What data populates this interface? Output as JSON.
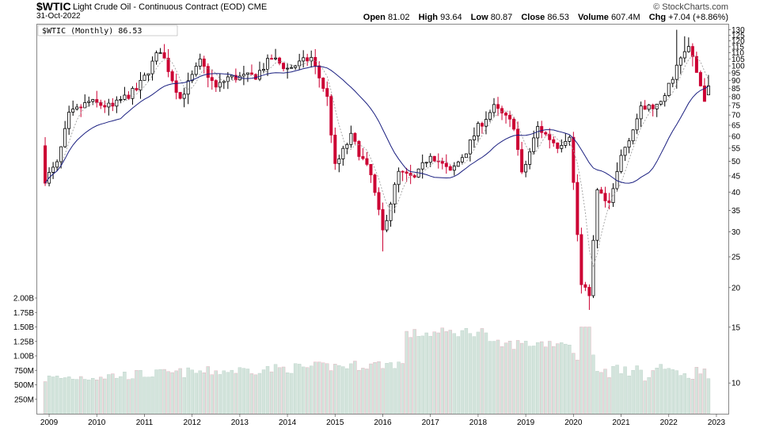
{
  "header": {
    "symbol": "$WTIC",
    "name": "Light Crude Oil - Continuous Contract (EOD)",
    "exchange": "CME",
    "date": "31-Oct-2022",
    "brand": "© StockCharts.com",
    "quote": {
      "open_label": "Open",
      "open": "81.02",
      "high_label": "High",
      "high": "93.64",
      "low_label": "Low",
      "low": "80.87",
      "close_label": "Close",
      "close": "86.53",
      "volume_label": "Volume",
      "volume": "607.4M",
      "chg_label": "Chg",
      "chg": "+7.04 (+8.86%)"
    }
  },
  "chart_data": {
    "type": "candlestick",
    "title": "Light Crude Oil - Continuous Contract (EOD)",
    "legend_label": "$WTIC (Monthly) 86.53",
    "colors": {
      "up": "#000000",
      "down": "#cc0033",
      "volume": "#d3e4dc",
      "sma_long": "#1a1f80",
      "sma_short": "#a0a0a0"
    },
    "y_scale": "log",
    "ylim": [
      8,
      135
    ],
    "price_ticks": [
      130,
      125,
      120,
      115,
      110,
      105,
      100,
      95,
      90,
      85,
      80,
      75,
      70,
      65,
      60,
      55,
      50,
      45,
      40,
      35,
      30,
      25,
      20,
      15,
      10
    ],
    "volume_ticks": [
      "2.00B",
      "1.75B",
      "1.50B",
      "1.25B",
      "1.00B",
      "750M",
      "500M",
      "250M"
    ],
    "volume_tick_values": [
      2000,
      1750,
      1500,
      1250,
      1000,
      750,
      500,
      250
    ],
    "x_ticks": [
      "2009",
      "2010",
      "2011",
      "2012",
      "2013",
      "2014",
      "2015",
      "2016",
      "2017",
      "2018",
      "2019",
      "2020",
      "2021",
      "2022",
      "2023"
    ],
    "close_anchors": [
      [
        2008.92,
        44
      ],
      [
        2009.17,
        49
      ],
      [
        2009.42,
        70
      ],
      [
        2009.83,
        77
      ],
      [
        2010.33,
        74
      ],
      [
        2010.5,
        78
      ],
      [
        2010.83,
        84
      ],
      [
        2011.0,
        92
      ],
      [
        2011.33,
        113
      ],
      [
        2011.75,
        79
      ],
      [
        2012.17,
        103
      ],
      [
        2012.5,
        85
      ],
      [
        2012.75,
        92
      ],
      [
        2013.0,
        92
      ],
      [
        2013.33,
        93
      ],
      [
        2013.67,
        106
      ],
      [
        2014.0,
        98
      ],
      [
        2014.5,
        106
      ],
      [
        2014.83,
        80
      ],
      [
        2015.0,
        48
      ],
      [
        2015.33,
        60
      ],
      [
        2015.75,
        45
      ],
      [
        2016.0,
        30
      ],
      [
        2016.33,
        46
      ],
      [
        2016.67,
        44
      ],
      [
        2017.0,
        53
      ],
      [
        2017.42,
        46
      ],
      [
        2017.75,
        54
      ],
      [
        2018.0,
        64
      ],
      [
        2018.33,
        74
      ],
      [
        2018.75,
        65
      ],
      [
        2018.92,
        45
      ],
      [
        2019.25,
        64
      ],
      [
        2019.67,
        56
      ],
      [
        2019.92,
        61
      ],
      [
        2020.17,
        20
      ],
      [
        2020.33,
        19
      ],
      [
        2020.5,
        40
      ],
      [
        2020.75,
        36
      ],
      [
        2021.0,
        52
      ],
      [
        2021.42,
        73
      ],
      [
        2021.83,
        75
      ],
      [
        2022.17,
        100
      ],
      [
        2022.42,
        115
      ],
      [
        2022.75,
        79
      ],
      [
        2022.83,
        86.53
      ]
    ],
    "last_bar": {
      "open": 81.02,
      "high": 93.64,
      "low": 80.87,
      "close": 86.53,
      "volume_millions": 607.4
    },
    "special_lows": {
      "2016.0": 26,
      "2020.33": 17,
      "2020.25": 19.5
    },
    "special_highs": {
      "2022.17": 130,
      "2022.33": 124,
      "2022.42": 123
    }
  }
}
